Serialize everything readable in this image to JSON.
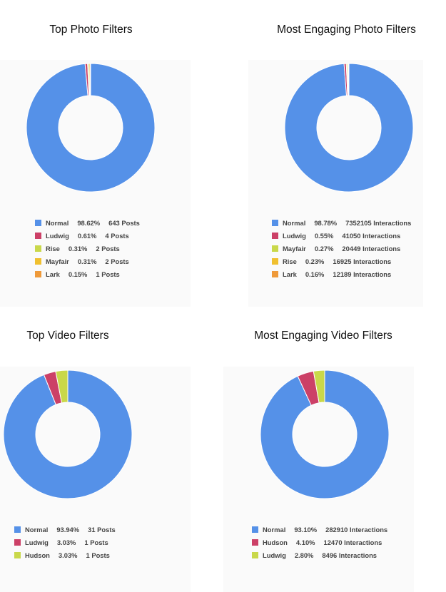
{
  "chart_data": [
    {
      "type": "pie",
      "donut": true,
      "title": "Top Photo Filters",
      "unit": "Posts",
      "slices": [
        {
          "label": "Normal",
          "percent": "98.62%",
          "value": 643,
          "count_text": "643 Posts",
          "color": "#5591e8"
        },
        {
          "label": "Ludwig",
          "percent": "0.61%",
          "value": 4,
          "count_text": "4 Posts",
          "color": "#cc4067"
        },
        {
          "label": "Rise",
          "percent": "0.31%",
          "value": 2,
          "count_text": "2 Posts",
          "color": "#c9d84a"
        },
        {
          "label": "Mayfair",
          "percent": "0.31%",
          "value": 2,
          "count_text": "2 Posts",
          "color": "#f0c02f"
        },
        {
          "label": "Lark",
          "percent": "0.15%",
          "value": 1,
          "count_text": "1 Posts",
          "color": "#ef9a3a"
        }
      ]
    },
    {
      "type": "pie",
      "donut": true,
      "title": "Most Engaging Photo Filters",
      "unit": "Interactions",
      "slices": [
        {
          "label": "Normal",
          "percent": "98.78%",
          "value": 7352105,
          "count_text": "7352105 Interactions",
          "color": "#5591e8"
        },
        {
          "label": "Ludwig",
          "percent": "0.55%",
          "value": 41050,
          "count_text": "41050 Interactions",
          "color": "#cc4067"
        },
        {
          "label": "Mayfair",
          "percent": "0.27%",
          "value": 20449,
          "count_text": "20449 Interactions",
          "color": "#c9d84a"
        },
        {
          "label": "Rise",
          "percent": "0.23%",
          "value": 16925,
          "count_text": "16925 Interactions",
          "color": "#f0c02f"
        },
        {
          "label": "Lark",
          "percent": "0.16%",
          "value": 12189,
          "count_text": "12189 Interactions",
          "color": "#ef9a3a"
        }
      ]
    },
    {
      "type": "pie",
      "donut": true,
      "title": "Top Video Filters",
      "unit": "Posts",
      "slices": [
        {
          "label": "Normal",
          "percent": "93.94%",
          "value": 31,
          "count_text": "31 Posts",
          "color": "#5591e8"
        },
        {
          "label": "Ludwig",
          "percent": "3.03%",
          "value": 1,
          "count_text": "1 Posts",
          "color": "#cc4067"
        },
        {
          "label": "Hudson",
          "percent": "3.03%",
          "value": 1,
          "count_text": "1 Posts",
          "color": "#c9d84a"
        }
      ]
    },
    {
      "type": "pie",
      "donut": true,
      "title": "Most Engaging Video Filters",
      "unit": "Interactions",
      "slices": [
        {
          "label": "Normal",
          "percent": "93.10%",
          "value": 282910,
          "count_text": "282910 Interactions",
          "color": "#5591e8"
        },
        {
          "label": "Hudson",
          "percent": "4.10%",
          "value": 12470,
          "count_text": "12470 Interactions",
          "color": "#cc4067"
        },
        {
          "label": "Ludwig",
          "percent": "2.80%",
          "value": 8496,
          "count_text": "8496 Interactions",
          "color": "#c9d84a"
        }
      ]
    }
  ]
}
